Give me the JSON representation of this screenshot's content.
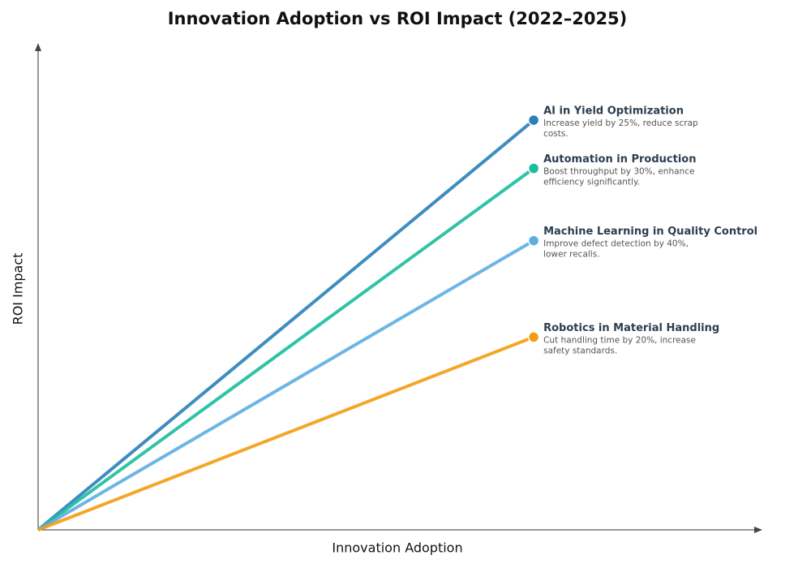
{
  "chart_data": {
    "type": "line",
    "title": "Innovation Adoption vs ROI Impact (2022–2025)",
    "x_label": "Innovation Adoption",
    "y_label": "ROI Impact",
    "xlim": [
      0,
      1
    ],
    "ylim": [
      0,
      1
    ],
    "x": [
      0,
      0.7
    ],
    "series": [
      {
        "name": "AI in Yield Optimization",
        "color": "#2980b9",
        "values": [
          0,
          0.85
        ],
        "description": [
          "Increase yield by 25%, reduce scrap",
          "costs."
        ]
      },
      {
        "name": "Automation in Production",
        "color": "#1abc9c",
        "values": [
          0,
          0.75
        ],
        "description": [
          "Boost throughput by 30%, enhance",
          "efficiency significantly."
        ]
      },
      {
        "name": "Machine Learning in Quality Control",
        "color": "#5dade2",
        "values": [
          0,
          0.6
        ],
        "description": [
          "Improve defect detection by 40%,",
          "lower recalls."
        ]
      },
      {
        "name": "Robotics in Material Handling",
        "color": "#f39c12",
        "values": [
          0,
          0.4
        ],
        "description": [
          "Cut handling time by 20%, increase",
          "safety standards."
        ]
      }
    ]
  }
}
